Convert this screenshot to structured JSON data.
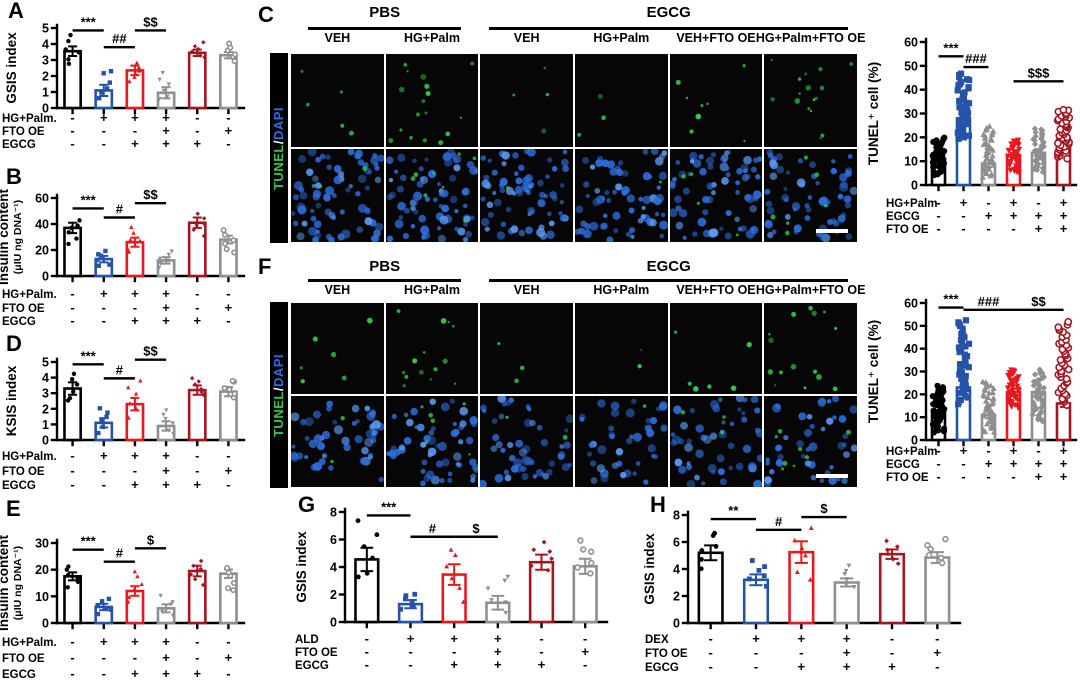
{
  "panel_letters": {
    "A": "A",
    "B": "B",
    "C": "C",
    "D": "D",
    "E": "E",
    "F": "F",
    "G": "G",
    "H": "H"
  },
  "colors": {
    "black": "#000000",
    "blue": "#2453A8",
    "red": "#E6191C",
    "gray": "#8F8F8F",
    "darkred": "#A31621",
    "tunel_green": "#35C94A",
    "dapi_blue": "#2E6FE0",
    "micro_bg": "#060606",
    "accent_text": "#000000"
  },
  "chart_data": [
    {
      "id": "A",
      "type": "bar",
      "ylabel": "GSIS index",
      "ylim": [
        0,
        5
      ],
      "yticks": [
        0,
        1,
        2,
        3,
        4,
        5
      ],
      "values": [
        3.55,
        1.1,
        2.35,
        0.95,
        3.45,
        3.3
      ],
      "errors": [
        0.3,
        0.35,
        0.3,
        0.35,
        0.2,
        0.2
      ],
      "colors": [
        "black",
        "blue",
        "red",
        "gray",
        "darkred",
        "gray"
      ],
      "n_points": 6,
      "scatter_range": [
        [
          2.6,
          4.6
        ],
        [
          0.4,
          2.6
        ],
        [
          1.5,
          3.0
        ],
        [
          0.3,
          2.4
        ],
        [
          3.0,
          4.2
        ],
        [
          2.9,
          4.1
        ]
      ],
      "sig": [
        {
          "a": 0,
          "b": 1,
          "label": "***",
          "y": 4.85
        },
        {
          "a": 1,
          "b": 2,
          "label": "##",
          "y": 3.8
        },
        {
          "a": 2,
          "b": 3,
          "label": "$$",
          "y": 4.85
        }
      ],
      "rows": [
        {
          "label": "HG+Palm.",
          "signs": [
            "-",
            "+",
            "+",
            "+",
            "-",
            "-"
          ]
        },
        {
          "label": "FTO OE",
          "signs": [
            "-",
            "-",
            "-",
            "+",
            "-",
            "+"
          ]
        },
        {
          "label": "EGCG",
          "signs": [
            "-",
            "-",
            "+",
            "+",
            "+",
            "-"
          ]
        }
      ]
    },
    {
      "id": "B",
      "type": "bar",
      "ylabel": "Insulin content",
      "ylabel2": "(μIU ng DNA⁻¹)",
      "ylim": [
        0,
        60
      ],
      "yticks": [
        0,
        20,
        40,
        60
      ],
      "values": [
        37,
        13,
        26,
        12,
        41,
        28
      ],
      "errors": [
        4,
        2.5,
        3.5,
        2.5,
        4,
        3
      ],
      "colors": [
        "black",
        "blue",
        "red",
        "gray",
        "darkred",
        "gray"
      ],
      "n_points": 6,
      "scatter_range": [
        [
          22,
          46
        ],
        [
          6,
          21
        ],
        [
          15,
          40
        ],
        [
          6,
          20
        ],
        [
          30,
          49
        ],
        [
          17,
          36
        ]
      ],
      "sig": [
        {
          "a": 0,
          "b": 1,
          "label": "***",
          "y": 52
        },
        {
          "a": 1,
          "b": 2,
          "label": "#",
          "y": 45
        },
        {
          "a": 2,
          "b": 3,
          "label": "$$",
          "y": 56
        }
      ],
      "rows": [
        {
          "label": "HG+Palm.",
          "signs": [
            "-",
            "+",
            "+",
            "+",
            "-",
            "-"
          ]
        },
        {
          "label": "FTO OE",
          "signs": [
            "-",
            "-",
            "-",
            "+",
            "-",
            "+"
          ]
        },
        {
          "label": "EGCG",
          "signs": [
            "-",
            "-",
            "+",
            "+",
            "+",
            "-"
          ]
        }
      ]
    },
    {
      "id": "D",
      "type": "bar",
      "ylabel": "KSIS index",
      "ylim": [
        0,
        5
      ],
      "yticks": [
        0,
        1,
        2,
        3,
        4,
        5
      ],
      "values": [
        3.3,
        1.1,
        2.3,
        0.9,
        3.2,
        3.1
      ],
      "errors": [
        0.4,
        0.3,
        0.4,
        0.3,
        0.3,
        0.3
      ],
      "colors": [
        "black",
        "blue",
        "red",
        "gray",
        "darkred",
        "gray"
      ],
      "n_points": 6,
      "scatter_range": [
        [
          2.2,
          4.5
        ],
        [
          0.4,
          2.2
        ],
        [
          1.3,
          4.0
        ],
        [
          0.3,
          2.0
        ],
        [
          2.8,
          4.0
        ],
        [
          2.6,
          4.0
        ]
      ],
      "sig": [
        {
          "a": 0,
          "b": 1,
          "label": "***",
          "y": 4.85
        },
        {
          "a": 1,
          "b": 2,
          "label": "#",
          "y": 3.95
        },
        {
          "a": 2,
          "b": 3,
          "label": "$$",
          "y": 5.15
        }
      ],
      "rows": [
        {
          "label": "HG+Palm.",
          "signs": [
            "-",
            "+",
            "+",
            "+",
            "-",
            "-"
          ]
        },
        {
          "label": "FTO OE",
          "signs": [
            "-",
            "-",
            "-",
            "+",
            "-",
            "+"
          ]
        },
        {
          "label": "EGCG",
          "signs": [
            "-",
            "-",
            "+",
            "+",
            "+",
            "-"
          ]
        }
      ]
    },
    {
      "id": "E",
      "type": "bar",
      "ylabel": "Insulin content",
      "ylabel2": "(μIU ng DNA⁻¹)",
      "ylim": [
        0,
        30
      ],
      "yticks": [
        0,
        10,
        20,
        30
      ],
      "values": [
        17.5,
        6,
        12,
        5.5,
        19.5,
        18.5
      ],
      "errors": [
        1.5,
        1.2,
        1.8,
        1.5,
        2,
        1.6
      ],
      "colors": [
        "black",
        "blue",
        "red",
        "gray",
        "darkred",
        "gray"
      ],
      "n_points": 6,
      "scatter_range": [
        [
          13,
          22
        ],
        [
          3,
          9.5
        ],
        [
          7,
          20
        ],
        [
          2,
          10.5
        ],
        [
          13,
          25
        ],
        [
          11,
          22
        ]
      ],
      "sig": [
        {
          "a": 0,
          "b": 1,
          "label": "***",
          "y": 27.5
        },
        {
          "a": 1,
          "b": 2,
          "label": "#",
          "y": 23
        },
        {
          "a": 2,
          "b": 3,
          "label": "$",
          "y": 28
        }
      ],
      "rows": [
        {
          "label": "HG+Palm.",
          "signs": [
            "-",
            "+",
            "+",
            "+",
            "-",
            "-"
          ]
        },
        {
          "label": "FTO OE",
          "signs": [
            "-",
            "-",
            "-",
            "+",
            "-",
            "+"
          ]
        },
        {
          "label": "EGCG",
          "signs": [
            "-",
            "-",
            "+",
            "+",
            "+",
            "-"
          ]
        }
      ]
    },
    {
      "id": "C",
      "type": "bar",
      "ylabel": "TUNEL⁺ cell (%)",
      "ylim": [
        0,
        60
      ],
      "yticks": [
        0,
        10,
        20,
        30,
        40,
        50,
        60
      ],
      "values": [
        11,
        28,
        9,
        12.5,
        13.5,
        19
      ],
      "errors": [
        1.5,
        2,
        1.5,
        1,
        1.5,
        1.5
      ],
      "colors": [
        "black",
        "blue",
        "gray",
        "red",
        "gray",
        "darkred"
      ],
      "n_points": 40,
      "scatter_range": [
        [
          4,
          20
        ],
        [
          19,
          47
        ],
        [
          3,
          25
        ],
        [
          5,
          19
        ],
        [
          5,
          24
        ],
        [
          11,
          32
        ]
      ],
      "sig": [
        {
          "a": 0,
          "b": 1,
          "label": "***",
          "y": 54
        },
        {
          "a": 1,
          "b": 2,
          "label": "###",
          "y": 49.5
        },
        {
          "a": 3,
          "b": 5,
          "label": "$$$",
          "y": 43.5
        }
      ],
      "rows": [
        {
          "label": "HG+Palm",
          "signs": [
            "-",
            "+",
            "-",
            "+",
            "-",
            "+"
          ]
        },
        {
          "label": "EGCG",
          "signs": [
            "-",
            "-",
            "+",
            "+",
            "+",
            "+"
          ]
        },
        {
          "label": "FTO OE",
          "signs": [
            "-",
            "-",
            "-",
            "-",
            "+",
            "+"
          ]
        }
      ]
    },
    {
      "id": "F",
      "type": "bar",
      "ylabel": "TUNEL⁺ cell (%)",
      "ylim": [
        0,
        60
      ],
      "yticks": [
        0,
        10,
        20,
        30,
        40,
        50,
        60
      ],
      "values": [
        13,
        23,
        11,
        21,
        21,
        16
      ],
      "errors": [
        1.5,
        2,
        1.5,
        1.5,
        1.5,
        1.5
      ],
      "colors": [
        "black",
        "blue",
        "gray",
        "red",
        "gray",
        "darkred"
      ],
      "n_points": 40,
      "scatter_range": [
        [
          3,
          24
        ],
        [
          15,
          53
        ],
        [
          3,
          26
        ],
        [
          14,
          31
        ],
        [
          8,
          31
        ],
        [
          15,
          52
        ]
      ],
      "sig": [
        {
          "a": 0,
          "b": 1,
          "label": "***",
          "y": 58
        },
        {
          "a": 1,
          "b": 3,
          "label": "###",
          "y": 57
        },
        {
          "a": 3,
          "b": 5,
          "label": "$$",
          "y": 57
        }
      ],
      "rows": [
        {
          "label": "HG+Palm",
          "signs": [
            "-",
            "+",
            "-",
            "+",
            "-",
            "+"
          ]
        },
        {
          "label": "EGCG",
          "signs": [
            "-",
            "-",
            "+",
            "+",
            "+",
            "+"
          ]
        },
        {
          "label": "FTO OE",
          "signs": [
            "-",
            "-",
            "-",
            "-",
            "+",
            "+"
          ]
        }
      ]
    },
    {
      "id": "G",
      "type": "bar",
      "ylabel": "GSIS index",
      "ylim": [
        0,
        8
      ],
      "yticks": [
        0,
        2,
        4,
        6,
        8
      ],
      "values": [
        4.55,
        1.3,
        3.45,
        1.4,
        4.35,
        4.05
      ],
      "errors": [
        0.85,
        0.3,
        0.75,
        0.5,
        0.55,
        0.55
      ],
      "colors": [
        "black",
        "blue",
        "red",
        "gray",
        "darkred",
        "gray"
      ],
      "n_points": 6,
      "scatter_range": [
        [
          2.6,
          7.5
        ],
        [
          0.9,
          2.2
        ],
        [
          1.3,
          5.8
        ],
        [
          0.5,
          3.6
        ],
        [
          3.6,
          6.0
        ],
        [
          3.3,
          6.1
        ]
      ],
      "sig": [
        {
          "a": 0,
          "b": 1,
          "label": "***",
          "y": 7.75
        },
        {
          "a": 1,
          "b": 2,
          "label": "#",
          "y": 6.2
        },
        {
          "a": 2,
          "b": 3,
          "label": "$",
          "y": 6.2
        }
      ],
      "rows": [
        {
          "label": "ALD",
          "signs": [
            "-",
            "+",
            "+",
            "+",
            "-",
            "-"
          ]
        },
        {
          "label": "FTO OE",
          "signs": [
            "-",
            "-",
            "-",
            "+",
            "-",
            "+"
          ]
        },
        {
          "label": "EGCG",
          "signs": [
            "-",
            "-",
            "+",
            "+",
            "+",
            "-"
          ]
        }
      ]
    },
    {
      "id": "H",
      "type": "bar",
      "ylabel": "GSIS index",
      "ylim": [
        0,
        8
      ],
      "yticks": [
        0,
        2,
        4,
        6,
        8
      ],
      "values": [
        5.2,
        3.2,
        5.25,
        3.0,
        5.1,
        4.85
      ],
      "errors": [
        0.55,
        0.4,
        0.8,
        0.3,
        0.35,
        0.4
      ],
      "colors": [
        "black",
        "blue",
        "red",
        "gray",
        "darkred",
        "gray"
      ],
      "n_points": 6,
      "scatter_range": [
        [
          3.9,
          7.1
        ],
        [
          2.6,
          4.9
        ],
        [
          2.9,
          7.5
        ],
        [
          2.5,
          4.4
        ],
        [
          4.2,
          6.2
        ],
        [
          4.2,
          6.3
        ]
      ],
      "sig": [
        {
          "a": 0,
          "b": 1,
          "label": "**",
          "y": 7.7
        },
        {
          "a": 1,
          "b": 2,
          "label": "#",
          "y": 6.9
        },
        {
          "a": 2,
          "b": 3,
          "label": "$",
          "y": 7.85
        }
      ],
      "rows": [
        {
          "label": "DEX",
          "signs": [
            "-",
            "+",
            "+",
            "+",
            "-",
            "-"
          ]
        },
        {
          "label": "FTO OE",
          "signs": [
            "-",
            "-",
            "-",
            "+",
            "-",
            "+"
          ]
        },
        {
          "label": "EGCG",
          "signs": [
            "-",
            "-",
            "+",
            "+",
            "+",
            "-"
          ]
        }
      ]
    }
  ],
  "micro_panels": [
    {
      "id": "C",
      "groups": [
        {
          "label": "PBS",
          "span": 2
        },
        {
          "label": "EGCG",
          "span": 4
        }
      ],
      "columns": [
        "VEH",
        "HG+Palm",
        "VEH",
        "HG+Palm",
        "VEH+FTO OE",
        "HG+Palm+FTO OE"
      ],
      "side_label": {
        "tunel": "TUNEL",
        "slash": "/",
        "dapi": "DAPI"
      },
      "tunel_dots": [
        5,
        17,
        4,
        3,
        8,
        16
      ],
      "dapi_cells": [
        75,
        70,
        72,
        65,
        70,
        62
      ],
      "dapi_green": [
        2,
        8,
        1,
        1,
        4,
        6
      ]
    },
    {
      "id": "F",
      "groups": [
        {
          "label": "PBS",
          "span": 2
        },
        {
          "label": "EGCG",
          "span": 4
        }
      ],
      "columns": [
        "VEH",
        "HG+Palm",
        "VEH",
        "HG+Palm",
        "VEH+FTO OE",
        "HG+Palm+FTO OE"
      ],
      "side_label": {
        "tunel": "TUNEL",
        "slash": "/",
        "dapi": "DAPI"
      },
      "tunel_dots": [
        6,
        14,
        3,
        2,
        6,
        15
      ],
      "dapi_cells": [
        50,
        55,
        50,
        42,
        52,
        45
      ],
      "dapi_green": [
        2,
        6,
        2,
        1,
        3,
        8
      ]
    }
  ]
}
